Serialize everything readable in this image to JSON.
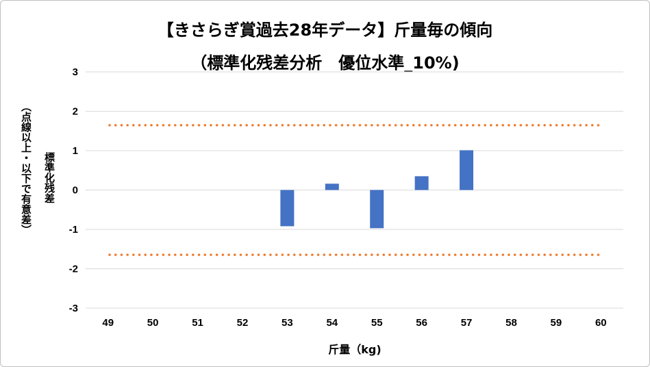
{
  "chart_data": {
    "type": "bar",
    "title": "【きさらぎ賞過去28年データ】斤量毎の傾向",
    "subtitle": "（標準化残差分析　優位水準_10%)",
    "xlabel": "斤量（kg)",
    "ylabel": "標準化残差",
    "ylabel_note": "（点線以上・以下で有意差）",
    "categories": [
      "49",
      "50",
      "51",
      "52",
      "53",
      "54",
      "55",
      "56",
      "57",
      "58",
      "59",
      "60"
    ],
    "values": [
      null,
      null,
      null,
      null,
      -0.92,
      0.16,
      -0.97,
      0.35,
      1.01,
      null,
      null,
      null
    ],
    "ylim": [
      -3,
      3
    ],
    "yticks": [
      3,
      2,
      1,
      0,
      -1,
      -2,
      -3
    ],
    "threshold_lines": [
      1.645,
      -1.645
    ],
    "bar_color": "#4472c4",
    "threshold_color": "#ed7d31",
    "grid_color": "#d9d9d9",
    "grid": true
  }
}
